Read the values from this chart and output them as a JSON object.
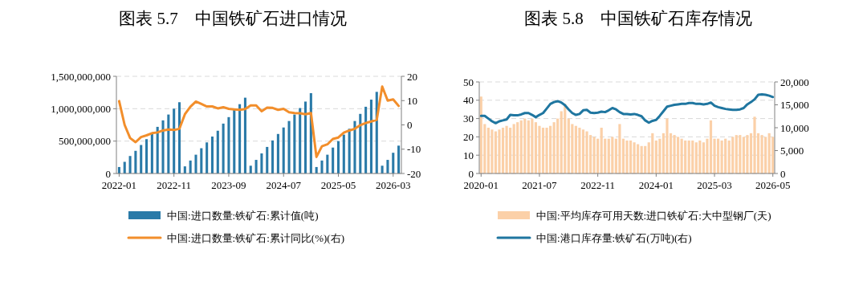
{
  "chart_data": [
    {
      "type": "bar",
      "title": "图表 5.7　中国铁矿石进口情况",
      "categories": [
        "2022-01",
        null,
        null,
        null,
        null,
        null,
        null,
        null,
        null,
        null,
        "2022-11",
        null,
        null,
        null,
        null,
        null,
        null,
        null,
        null,
        null,
        "2023-09",
        null,
        null,
        null,
        null,
        null,
        null,
        null,
        null,
        null,
        "2024-07",
        null,
        null,
        null,
        null,
        null,
        null,
        null,
        null,
        null,
        "2025-05",
        null,
        null,
        null,
        null,
        null,
        null,
        null,
        null,
        null,
        "2026-03",
        null
      ],
      "series": [
        {
          "name": "中国:进口数量:铁矿石:累计值(吨)",
          "color": "#2a7aa8",
          "values": [
            100000000,
            180000000,
            270000000,
            350000000,
            440000000,
            530000000,
            610000000,
            720000000,
            820000000,
            910000000,
            1000000000,
            1100000000,
            110000000,
            200000000,
            290000000,
            390000000,
            480000000,
            570000000,
            660000000,
            770000000,
            870000000,
            980000000,
            1070000000,
            1170000000,
            120000000,
            210000000,
            310000000,
            410000000,
            510000000,
            610000000,
            710000000,
            810000000,
            910000000,
            1010000000,
            1110000000,
            1240000000,
            100000000,
            200000000,
            290000000,
            400000000,
            500000000,
            600000000,
            690000000,
            810000000,
            920000000,
            1030000000,
            1140000000,
            1260000000,
            120000000,
            210000000,
            320000000,
            430000000
          ]
        },
        {
          "name": "中国:进口数量:铁矿石:累计同比(%)(右)",
          "type": "line",
          "axis": "y2",
          "color": "#f28e2b",
          "values": [
            9.8,
            0,
            -5.4,
            -7.1,
            -5.0,
            -4.3,
            -3.4,
            -3.1,
            -2.3,
            -1.9,
            -2.1,
            -1.6,
            4.4,
            7.5,
            9.6,
            8.6,
            7.6,
            7.6,
            6.8,
            7.3,
            6.6,
            6.4,
            6.2,
            6.5,
            8.0,
            8.0,
            5.6,
            7.1,
            7.0,
            6.2,
            6.6,
            5.2,
            4.9,
            4.8,
            4.4,
            4.9,
            -13.2,
            -8.8,
            -8.0,
            -5.8,
            -5.2,
            -3.2,
            -2.3,
            -1.6,
            -0.1,
            0.8,
            1.4,
            2.1,
            15.8,
            10.0,
            10.5,
            7.8
          ]
        }
      ],
      "ylim": [
        0,
        1500000000
      ],
      "yticks": [
        0,
        {
          "value": 500000000,
          "label": "500,000,000"
        },
        {
          "value": 1000000000,
          "label": "1,000,000,000"
        },
        {
          "value": 1500000000,
          "label": "1,500,000,000"
        }
      ],
      "y2lim": [
        -20,
        20
      ],
      "y2ticks": [
        -20,
        -10,
        0,
        10,
        20
      ],
      "grid": "y",
      "legend": "bottom"
    },
    {
      "type": "bar",
      "title": "图表 5.8　中国铁矿石库存情况",
      "categories": [
        "2020-01",
        null,
        null,
        null,
        null,
        null,
        null,
        null,
        null,
        null,
        null,
        null,
        null,
        null,
        null,
        null,
        "2021-07",
        null,
        null,
        null,
        null,
        null,
        null,
        null,
        null,
        null,
        null,
        null,
        null,
        null,
        null,
        null,
        "2022-11",
        null,
        null,
        null,
        null,
        null,
        null,
        null,
        null,
        null,
        null,
        null,
        null,
        null,
        null,
        null,
        "2024-01",
        null,
        null,
        null,
        null,
        null,
        null,
        null,
        null,
        null,
        null,
        null,
        null,
        null,
        null,
        null,
        "2025-03",
        null,
        null,
        null,
        null,
        null,
        null,
        null,
        null,
        null,
        null,
        null,
        null,
        null,
        null,
        null,
        "2026-05"
      ],
      "series": [
        {
          "name": "中国:平均库存可用天数:进口铁矿石:大中型钢厂(天)",
          "color": "#fbd0a8",
          "values": [
            42,
            27,
            25,
            24,
            23,
            24,
            25,
            26,
            25,
            27,
            28,
            29,
            30,
            29,
            30,
            28,
            26,
            25,
            25,
            26,
            28,
            30,
            34,
            38,
            30,
            27,
            26,
            25,
            24,
            23,
            21,
            20,
            19,
            25,
            19,
            19,
            20,
            19,
            27,
            19,
            18,
            18,
            17,
            16,
            15,
            15,
            17,
            22,
            18,
            19,
            22,
            30,
            22,
            21,
            20,
            19,
            18,
            18,
            18,
            17,
            18,
            17,
            19,
            29,
            19,
            19,
            18,
            19,
            18,
            20,
            21,
            21,
            20,
            21,
            22,
            31,
            22,
            21,
            20,
            22,
            20
          ]
        },
        {
          "name": "中国:港口库存量:铁矿石(万吨)(右)",
          "type": "line",
          "axis": "y2",
          "color": "#1f76a0",
          "values": [
            12600,
            12600,
            12000,
            11400,
            11000,
            11400,
            11600,
            11800,
            12800,
            12700,
            12700,
            12900,
            13200,
            13200,
            12800,
            12300,
            12800,
            13200,
            14200,
            15200,
            15600,
            15800,
            15500,
            14900,
            14000,
            13200,
            12800,
            13000,
            13800,
            13900,
            13300,
            13200,
            13300,
            13500,
            13400,
            13800,
            14300,
            14000,
            13400,
            13000,
            13000,
            12900,
            13000,
            12800,
            12500,
            11600,
            11100,
            11500,
            11700,
            12600,
            13600,
            14600,
            14800,
            15000,
            15100,
            15200,
            15200,
            15400,
            15400,
            15200,
            15200,
            15100,
            15200,
            15500,
            14800,
            14500,
            14300,
            14100,
            14000,
            13900,
            13900,
            14000,
            14300,
            15100,
            15600,
            16200,
            17200,
            17300,
            17200,
            17000,
            16700
          ]
        }
      ],
      "ylim": [
        0,
        50
      ],
      "yticks": [
        0,
        10,
        20,
        30,
        40,
        50
      ],
      "y2lim": [
        0,
        20000
      ],
      "y2ticks": [
        0,
        {
          "value": 5000,
          "label": "5,000"
        },
        {
          "value": 10000,
          "label": "10,000"
        },
        {
          "value": 15000,
          "label": "15,000"
        },
        {
          "value": 20000,
          "label": "20,000"
        }
      ],
      "grid": "y",
      "legend": "bottom"
    }
  ]
}
